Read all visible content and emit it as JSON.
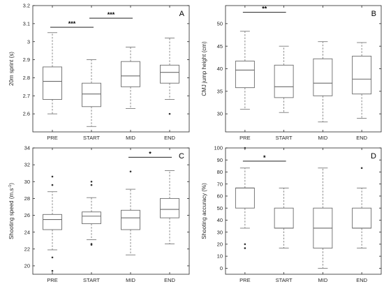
{
  "chart_data": [
    {
      "type": "box",
      "panel": "A",
      "ylabel": "20m sprint (s)",
      "ylim": [
        2.5,
        3.2
      ],
      "yticks": [
        2.6,
        2.7,
        2.8,
        2.9,
        3,
        3.1,
        3.2
      ],
      "yticklabels": [
        "2.6",
        "2.7",
        "2.8",
        "2.9",
        "3",
        "3.1",
        "3.2"
      ],
      "categories": [
        "PRE",
        "START",
        "MID",
        "END"
      ],
      "boxes": [
        {
          "whisker_low": 2.6,
          "q1": 2.68,
          "median": 2.78,
          "q3": 2.86,
          "whisker_high": 3.05,
          "outliers": []
        },
        {
          "whisker_low": 2.53,
          "q1": 2.64,
          "median": 2.71,
          "q3": 2.77,
          "whisker_high": 2.9,
          "outliers": []
        },
        {
          "whisker_low": 2.63,
          "q1": 2.75,
          "median": 2.81,
          "q3": 2.89,
          "whisker_high": 2.97,
          "outliers": []
        },
        {
          "whisker_low": 2.68,
          "q1": 2.77,
          "median": 2.83,
          "q3": 2.87,
          "whisker_high": 3.02,
          "outliers": [
            2.6
          ]
        }
      ],
      "significance": [
        {
          "from": 0,
          "to": 1,
          "y": 3.08,
          "label": "***"
        },
        {
          "from": 1,
          "to": 2,
          "y": 3.13,
          "label": "***"
        }
      ]
    },
    {
      "type": "box",
      "panel": "B",
      "ylabel": "CMJ jump height (cm)",
      "ylim": [
        26,
        54
      ],
      "yticks": [
        30,
        35,
        40,
        45,
        50
      ],
      "yticklabels": [
        "30",
        "35",
        "40",
        "45",
        "50"
      ],
      "categories": [
        "PRE",
        "START",
        "MID",
        "END"
      ],
      "boxes": [
        {
          "whisker_low": 31,
          "q1": 35.8,
          "median": 39.7,
          "q3": 41.7,
          "whisker_high": 48.3,
          "outliers": []
        },
        {
          "whisker_low": 30.3,
          "q1": 33.6,
          "median": 36,
          "q3": 40.8,
          "whisker_high": 45,
          "outliers": []
        },
        {
          "whisker_low": 28.2,
          "q1": 34,
          "median": 36.8,
          "q3": 42.2,
          "whisker_high": 46,
          "outliers": []
        },
        {
          "whisker_low": 29,
          "q1": 34.4,
          "median": 37.7,
          "q3": 42.8,
          "whisker_high": 45.8,
          "outliers": []
        }
      ],
      "significance": [
        {
          "from": 0,
          "to": 1,
          "y": 52.5,
          "label": "**"
        }
      ]
    },
    {
      "type": "box",
      "panel": "C",
      "ylabel": "Shooting speed (m.s<sup>-1</sup>)",
      "ylabel_parts": [
        "Shooting speed (m.s",
        "-1",
        ")"
      ],
      "ylim": [
        19,
        34
      ],
      "yticks": [
        20,
        22,
        24,
        26,
        28,
        30,
        32,
        34
      ],
      "yticklabels": [
        "20",
        "22",
        "24",
        "26",
        "28",
        "30",
        "32",
        "34"
      ],
      "categories": [
        "PRE",
        "START",
        "MID",
        "END"
      ],
      "boxes": [
        {
          "whisker_low": 21.9,
          "q1": 24.3,
          "median": 25.5,
          "q3": 26.1,
          "whisker_high": 28.8,
          "outliers": [
            30.6,
            29.6,
            21,
            19.4
          ]
        },
        {
          "whisker_low": 23.1,
          "q1": 25,
          "median": 25.9,
          "q3": 26.4,
          "whisker_high": 28.1,
          "outliers": [
            30,
            29.6,
            22.6,
            22.5
          ]
        },
        {
          "whisker_low": 21.3,
          "q1": 24.3,
          "median": 25.7,
          "q3": 26.6,
          "whisker_high": 29.1,
          "outliers": [
            31.2
          ]
        },
        {
          "whisker_low": 22.6,
          "q1": 25.7,
          "median": 26.7,
          "q3": 28,
          "whisker_high": 31.3,
          "outliers": []
        }
      ],
      "significance": [
        {
          "from": 2,
          "to": 3,
          "y": 32.9,
          "label": "*"
        }
      ]
    },
    {
      "type": "box",
      "panel": "D",
      "ylabel": "Shooting accuracy (%)",
      "ylim": [
        -5,
        100
      ],
      "yticks": [
        0,
        10,
        20,
        30,
        40,
        50,
        60,
        70,
        80,
        90,
        100
      ],
      "yticklabels": [
        "0",
        "10",
        "20",
        "30",
        "40",
        "50",
        "60",
        "70",
        "80",
        "90",
        "100"
      ],
      "categories": [
        "PRE",
        "START",
        "MID",
        "END"
      ],
      "boxes": [
        {
          "whisker_low": 33.3,
          "q1": 50,
          "median": 66.7,
          "q3": 66.7,
          "whisker_high": 83.3,
          "outliers": [
            100,
            20,
            16.7
          ]
        },
        {
          "whisker_low": 16.7,
          "q1": 33.3,
          "median": 33.3,
          "q3": 50,
          "whisker_high": 66.7,
          "outliers": []
        },
        {
          "whisker_low": 0,
          "q1": 16.7,
          "median": 33.3,
          "q3": 50,
          "whisker_high": 83.3,
          "outliers": []
        },
        {
          "whisker_low": 16.7,
          "q1": 33.3,
          "median": 33.3,
          "q3": 50,
          "whisker_high": 66.7,
          "outliers": [
            83.3
          ]
        }
      ],
      "significance": [
        {
          "from": 0,
          "to": 1,
          "y": 89,
          "label": "*"
        }
      ]
    }
  ]
}
